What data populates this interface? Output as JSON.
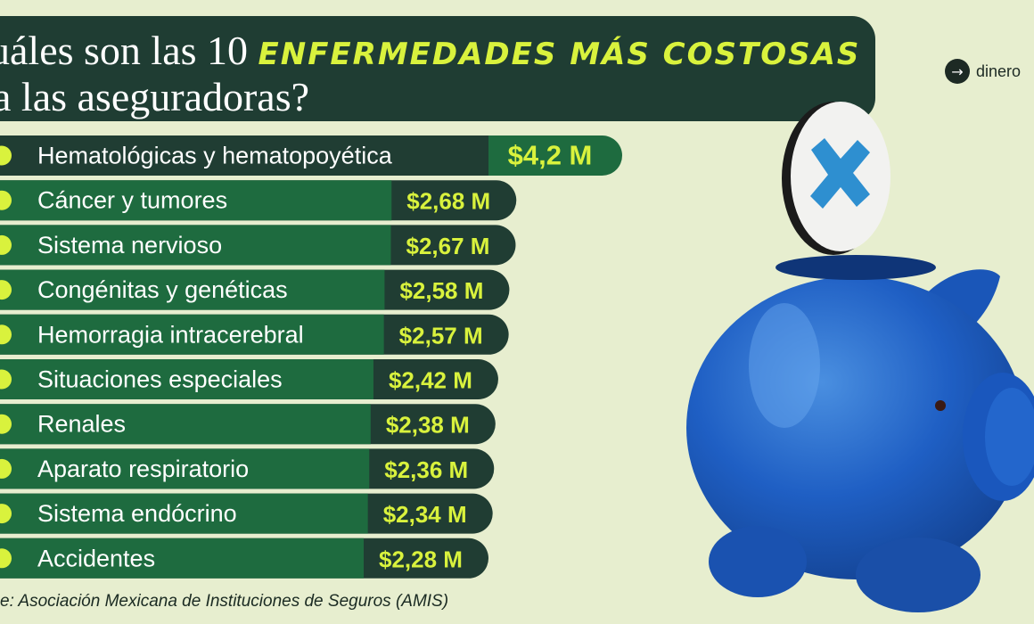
{
  "header": {
    "title_part1": "uáles son las 10",
    "title_accent": "ENFERMEDADES MÁS COSTOSAS",
    "title_line2": "a las aseguradoras?"
  },
  "brand": {
    "arrow_icon": "→",
    "name": "dinero"
  },
  "source": "e: Asociación Mexicana de Instituciones de Seguros (AMIS)",
  "colors": {
    "background": "#e7eecf",
    "title_box": "#1f3d33",
    "bar_green": "#1e6b3f",
    "value_dark": "#203d33",
    "accent": "#d9f23d"
  },
  "illustration": "piggy-bank-with-medical-cross-coin",
  "chart_data": {
    "type": "bar",
    "orientation": "horizontal",
    "unit": "M",
    "categories": [
      "Hematológicas y hematopoyética",
      "Cáncer y tumores",
      "Sistema nervioso",
      "Congénitas y genéticas",
      "Hemorragia intracerebral",
      "Situaciones especiales",
      "Renales",
      "Aparato respiratorio",
      "Sistema endócrino",
      "Accidentes"
    ],
    "values": [
      4.2,
      2.68,
      2.67,
      2.58,
      2.57,
      2.42,
      2.38,
      2.36,
      2.34,
      2.28
    ],
    "value_labels": [
      "$4,2 M",
      "$2,68 M",
      "$2,67 M",
      "$2,58 M",
      "$2,57 M",
      "$2,42 M",
      "$2,38 M",
      "$2,36 M",
      "$2,34 M",
      "$2,28 M"
    ],
    "icons": [
      "blood-bag-icon",
      "cancer-ribbon-icon",
      "brain-icon",
      "dna-icon",
      "head-icon",
      "shield-icon",
      "kidney-icon",
      "lungs-icon",
      "thyroid-icon",
      "car-crash-icon"
    ]
  }
}
